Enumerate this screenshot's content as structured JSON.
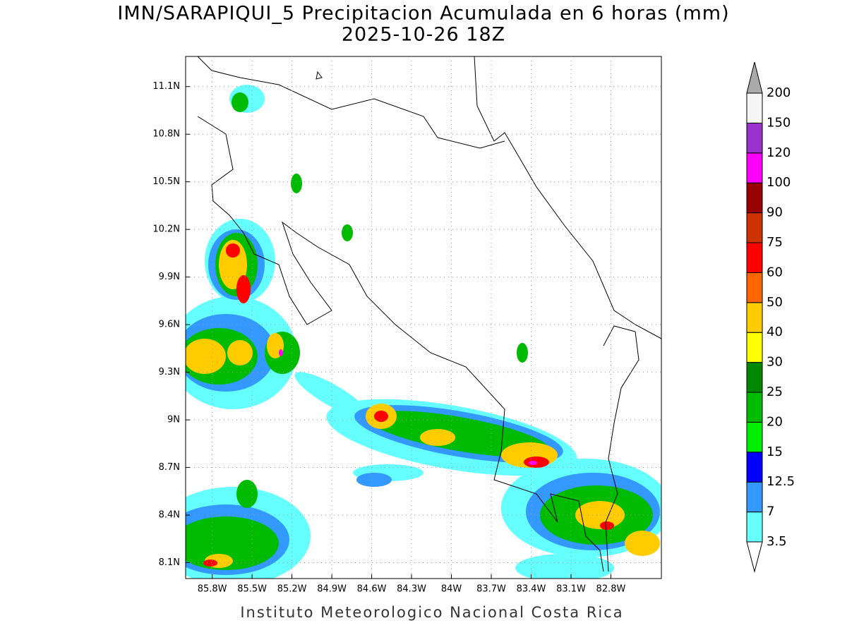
{
  "chart_data": {
    "type": "map",
    "title": "IMN/SARAPIQUI_5 Precipitacion Acumulada en 6 horas (mm)",
    "subtitle": "2025-10-26 18Z",
    "footer": "Instituto Meteorologico Nacional Costa Rica",
    "xlim": [
      -86.0,
      -82.42
    ],
    "ylim": [
      8.0,
      11.29
    ],
    "xticks": [
      {
        "value": -85.8,
        "label": "85.8W"
      },
      {
        "value": -85.5,
        "label": "85.5W"
      },
      {
        "value": -85.2,
        "label": "85.2W"
      },
      {
        "value": -84.9,
        "label": "84.9W"
      },
      {
        "value": -84.6,
        "label": "84.6W"
      },
      {
        "value": -84.3,
        "label": "84.3W"
      },
      {
        "value": -84.0,
        "label": "84W"
      },
      {
        "value": -83.7,
        "label": "83.7W"
      },
      {
        "value": -83.4,
        "label": "83.4W"
      },
      {
        "value": -83.1,
        "label": "83.1W"
      },
      {
        "value": -82.8,
        "label": "82.8W"
      }
    ],
    "yticks": [
      {
        "value": 8.1,
        "label": "8.1N"
      },
      {
        "value": 8.4,
        "label": "8.4N"
      },
      {
        "value": 8.7,
        "label": "8.7N"
      },
      {
        "value": 9.0,
        "label": "9N"
      },
      {
        "value": 9.3,
        "label": "9.3N"
      },
      {
        "value": 9.6,
        "label": "9.6N"
      },
      {
        "value": 9.9,
        "label": "9.9N"
      },
      {
        "value": 10.2,
        "label": "10.2N"
      },
      {
        "value": 10.5,
        "label": "10.5N"
      },
      {
        "value": 10.8,
        "label": "10.8N"
      },
      {
        "value": 11.1,
        "label": "11.1N"
      }
    ],
    "grid": true,
    "colorbar": {
      "levels": [
        3.5,
        7,
        12.5,
        15,
        20,
        25,
        30,
        40,
        50,
        60,
        75,
        90,
        100,
        120,
        150,
        200
      ],
      "colors": [
        "#66ffff",
        "#3399ff",
        "#0000ff",
        "#00ee00",
        "#00bb00",
        "#008800",
        "#ffff00",
        "#ffcc00",
        "#ff6600",
        "#ff0000",
        "#cc3300",
        "#990000",
        "#ff00ff",
        "#9933cc",
        "#f5f5f5"
      ],
      "under_color": "#ffffff",
      "over_color": "#aaaaaa"
    }
  }
}
